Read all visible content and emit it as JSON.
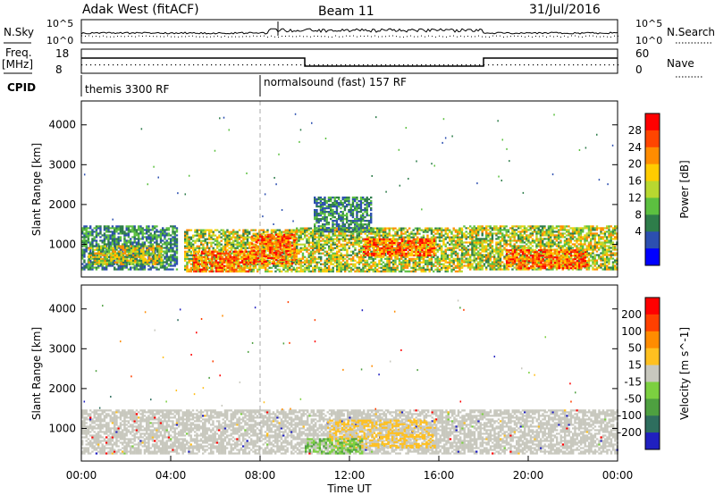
{
  "header": {
    "station": "Adak West (fitACF)",
    "beam": "Beam 11",
    "date": "31/Jul/2016"
  },
  "summary": {
    "nsky_label": "N.Sky",
    "nsky_ticks": [
      "10^5",
      "10^0"
    ],
    "nsearch_label": "N.Search",
    "nsearch_ticks": [
      "10^5",
      "10^0"
    ],
    "freq_label": "Freq.",
    "freq_unit": "[MHz]",
    "freq_ticks": [
      "18",
      "8"
    ],
    "nave_label": "Nave",
    "nave_ticks": [
      "60",
      "0"
    ],
    "cpid_label": "CPID",
    "cpid_segments": [
      {
        "name": "themis 3300 RF",
        "start_hour": 0
      },
      {
        "name": "normalsound (fast) 157 RF",
        "start_hour": 8
      }
    ],
    "freq_steps": [
      {
        "start": 0,
        "end": 10,
        "level": "high"
      },
      {
        "start": 10,
        "end": 18,
        "level": "low"
      },
      {
        "start": 18,
        "end": 24,
        "level": "high"
      }
    ]
  },
  "chart_data": [
    {
      "type": "heatmap",
      "quantity": "power",
      "ylabel": "Slant Range [km]",
      "xlim": [
        "00:00",
        "24:00"
      ],
      "ylim": [
        180,
        4600
      ],
      "yticks": [
        "4000",
        "3000",
        "2000",
        "1000"
      ],
      "colorbar": {
        "label": "Power [dB]",
        "ticks": [
          "28",
          "24",
          "20",
          "16",
          "12",
          "8",
          "4"
        ],
        "range": [
          0,
          30
        ],
        "colors": [
          "#0000ff",
          "#2c4fb0",
          "#2e7d4a",
          "#5cc040",
          "#b8d830",
          "#ffcc00",
          "#ff8c00",
          "#ff4500",
          "#ff0000"
        ]
      },
      "echo_regions": [
        {
          "t0": 0.0,
          "t1": 4.3,
          "r0": 350,
          "r1": 1450,
          "level": "weak"
        },
        {
          "t0": 0.3,
          "t1": 3.6,
          "r0": 480,
          "r1": 950,
          "level": "moderate"
        },
        {
          "t0": 4.6,
          "t1": 9.6,
          "r0": 300,
          "r1": 1350,
          "level": "moderate"
        },
        {
          "t0": 5.0,
          "t1": 7.6,
          "r0": 300,
          "r1": 800,
          "level": "strong"
        },
        {
          "t0": 7.6,
          "t1": 9.6,
          "r0": 500,
          "r1": 1250,
          "level": "strong"
        },
        {
          "t0": 9.6,
          "t1": 17.0,
          "r0": 300,
          "r1": 1400,
          "level": "moderate"
        },
        {
          "t0": 12.6,
          "t1": 15.8,
          "r0": 700,
          "r1": 1150,
          "level": "strong"
        },
        {
          "t0": 17.0,
          "t1": 24.0,
          "r0": 350,
          "r1": 1450,
          "level": "moderate"
        },
        {
          "t0": 19.0,
          "t1": 22.6,
          "r0": 380,
          "r1": 850,
          "level": "strong"
        },
        {
          "t0": 10.4,
          "t1": 13.0,
          "r0": 1300,
          "r1": 2200,
          "level": "weak"
        }
      ]
    },
    {
      "type": "heatmap",
      "quantity": "velocity",
      "ylabel": "Slant Range [km]",
      "xlabel": "Time UT",
      "xlim": [
        "00:00",
        "24:00"
      ],
      "ylim": [
        180,
        4600
      ],
      "xticks": [
        "00:00",
        "04:00",
        "08:00",
        "12:00",
        "16:00",
        "20:00",
        "00:00"
      ],
      "yticks": [
        "4000",
        "3000",
        "2000",
        "1000"
      ],
      "colorbar": {
        "label": "Velocity [m s^-1]",
        "ticks": [
          "200",
          "100",
          "50",
          "15",
          "-15",
          "-50",
          "-100",
          "-200"
        ],
        "colors": [
          "#2020c0",
          "#2e6e5e",
          "#4ea040",
          "#7cd040",
          "#c8c8be",
          "#ffc020",
          "#ff8c00",
          "#ff4000",
          "#ff0000"
        ]
      },
      "echo_regions": [
        {
          "t0": 0.0,
          "t1": 24.0,
          "r0": 350,
          "r1": 1450,
          "velocity": "ground scatter ~0"
        },
        {
          "t0": 11.0,
          "t1": 15.8,
          "r0": 500,
          "r1": 1200,
          "velocity": "-15 to -50"
        },
        {
          "t0": 10.0,
          "t1": 12.6,
          "r0": 350,
          "r1": 750,
          "velocity": "15 to 50"
        }
      ]
    }
  ]
}
